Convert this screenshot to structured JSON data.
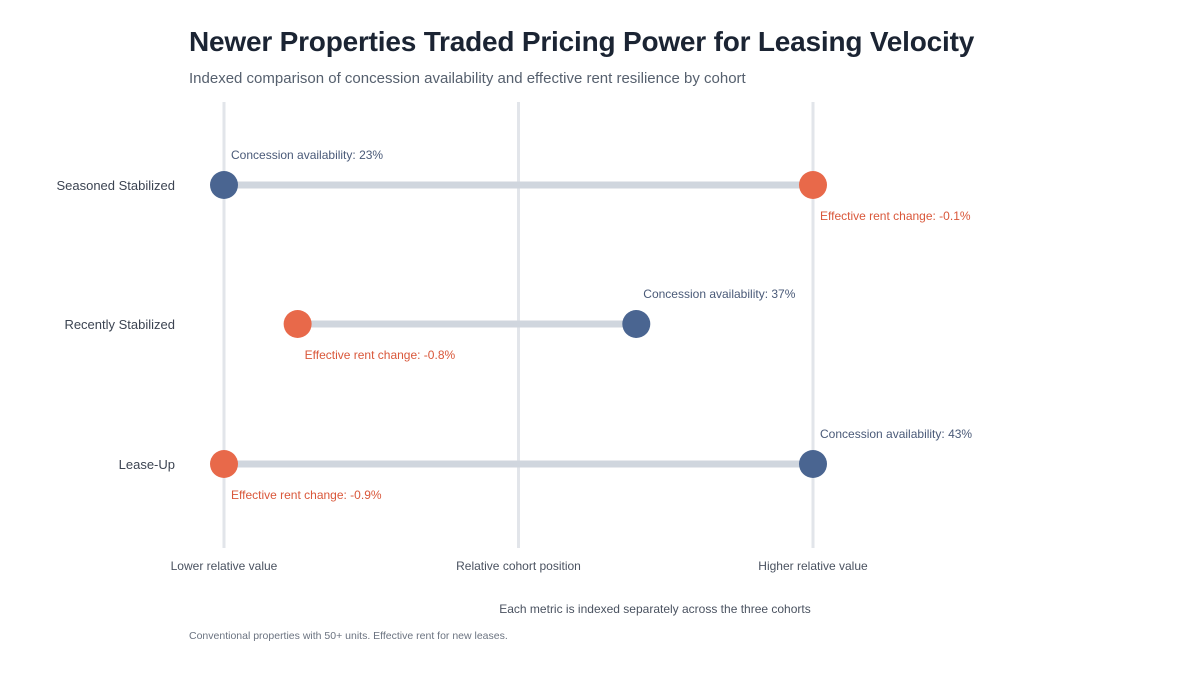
{
  "title": "Newer Properties Traded Pricing Power for Leasing Velocity",
  "subtitle": "Indexed comparison of concession availability and effective rent resilience by cohort",
  "note": "Each metric is indexed separately across the three cohorts",
  "footnote": "Conventional properties with 50+ units. Effective rent for new leases.",
  "chart_data": {
    "type": "dumbbell",
    "categories": [
      "Seasoned Stabilized",
      "Recently Stabilized",
      "Lease-Up"
    ],
    "x_tick_labels": [
      "Lower relative value",
      "Relative cohort position",
      "Higher relative value"
    ],
    "xlim": [
      0,
      1
    ],
    "grid": true,
    "series": [
      {
        "name": "Concession availability",
        "unit": "%",
        "values": [
          23,
          37,
          43
        ],
        "label_prefix": "Concession availability: ",
        "color": "#4a6591"
      },
      {
        "name": "Effective rent change",
        "unit": "%",
        "values": [
          -0.1,
          -0.8,
          -0.9
        ],
        "label_prefix": "Effective rent change: ",
        "color": "#e8694a"
      }
    ],
    "connector_color": "#d0d6de",
    "gridline_color": "#e2e5ea"
  }
}
